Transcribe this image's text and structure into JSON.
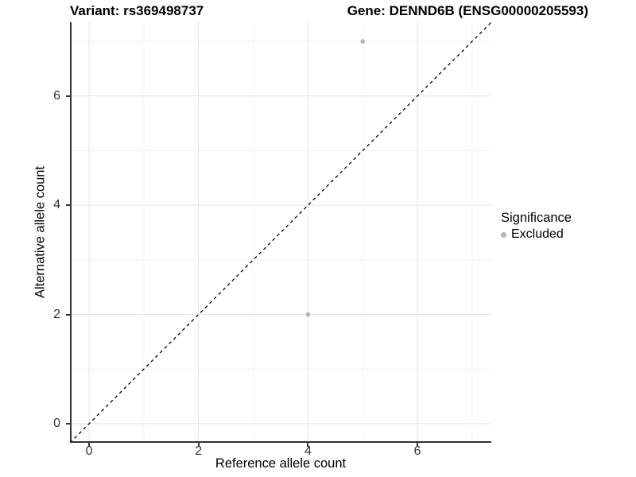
{
  "header": {
    "variant_title": "Variant: rs369498737",
    "gene_title": "Gene: DENND6B (ENSG00000205593)"
  },
  "legend": {
    "title": "Significance",
    "items": [
      {
        "label": "Excluded",
        "color": "#b4b4b4",
        "shape": "circle"
      }
    ]
  },
  "chart_data": {
    "type": "scatter",
    "title_left": "Variant: rs369498737",
    "title_right": "Gene: DENND6B (ENSG00000205593)",
    "xlabel": "Reference allele count",
    "ylabel": "Alternative allele count",
    "xlim": [
      -0.35,
      7.35
    ],
    "ylim": [
      -0.35,
      7.35
    ],
    "x_ticks": [
      0,
      2,
      4,
      6
    ],
    "y_ticks": [
      0,
      2,
      4,
      6
    ],
    "x_minor_gridlines": [
      1,
      3,
      5,
      7
    ],
    "y_minor_gridlines": [
      1,
      3,
      5,
      7
    ],
    "grid": true,
    "legend_position": "right",
    "series": [
      {
        "name": "Excluded",
        "color": "#b4b4b4",
        "points": [
          {
            "x": 5,
            "y": 7
          },
          {
            "x": 4,
            "y": 2
          }
        ]
      }
    ],
    "reference_line": {
      "kind": "identity",
      "style": "dashed",
      "color": "#000000"
    },
    "style": {
      "background": "#ffffff",
      "grid_major_color": "#e6e6e6",
      "grid_minor_color": "#f2f2f2",
      "axis_line_color": "#333333",
      "point_radius": 2.8,
      "dash_pattern": "4 4"
    }
  }
}
